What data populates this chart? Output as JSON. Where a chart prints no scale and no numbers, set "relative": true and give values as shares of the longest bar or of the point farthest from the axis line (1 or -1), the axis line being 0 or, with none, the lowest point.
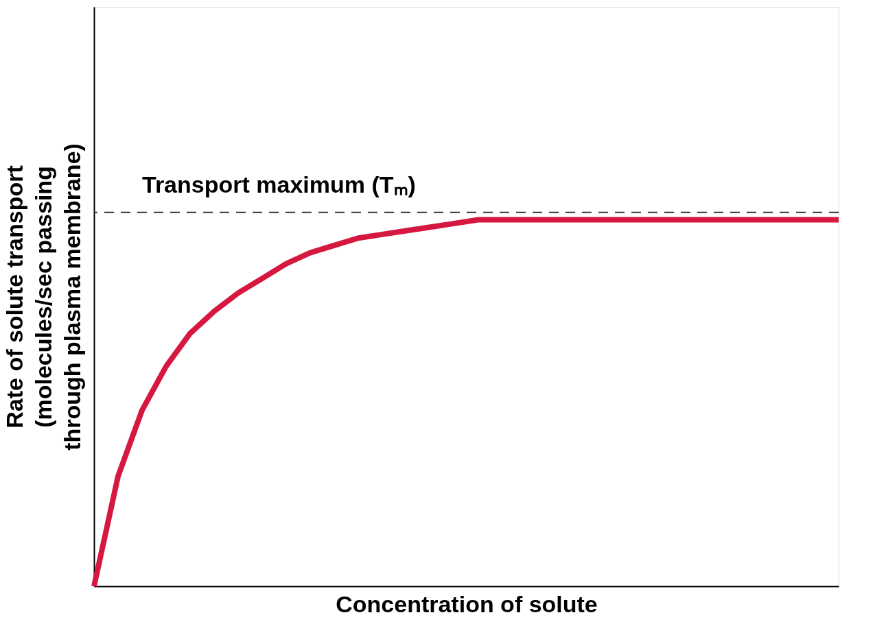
{
  "chart_data": {
    "type": "line",
    "relative": true,
    "xlabel": "Concentration of solute",
    "ylabel": "Rate of solute transport\n(molecules/sec passing\nthrough plasma membrane)",
    "categories": [
      null,
      null,
      null,
      null,
      null,
      null,
      null,
      null,
      null,
      null,
      null,
      null,
      null,
      null,
      null,
      null,
      null,
      null,
      null,
      null,
      null,
      null,
      null,
      null,
      null,
      null,
      null,
      null,
      null,
      null,
      null,
      null
    ],
    "series": [
      {
        "color": "#d6173f",
        "values": [
          0,
          0.3,
          0.48,
          0.6,
          0.69,
          0.75,
          0.8,
          0.84,
          0.88,
          0.91,
          0.93,
          0.95,
          0.96,
          0.97,
          0.98,
          0.99,
          1.0,
          1.0,
          1.0,
          1.0,
          1.0,
          1.0,
          1.0,
          1.0,
          1.0,
          1.0,
          1.0,
          1.0,
          1.0,
          1.0,
          1.0,
          1.0
        ]
      }
    ],
    "ref_lines": [
      {
        "axis": "y",
        "value": 1.02,
        "label": "Transport maximum (Tₘ)",
        "color": "#333333",
        "line_style": "dashed"
      }
    ],
    "tick_labels": false,
    "grid": false,
    "line_style": "solid",
    "marker": "none"
  }
}
